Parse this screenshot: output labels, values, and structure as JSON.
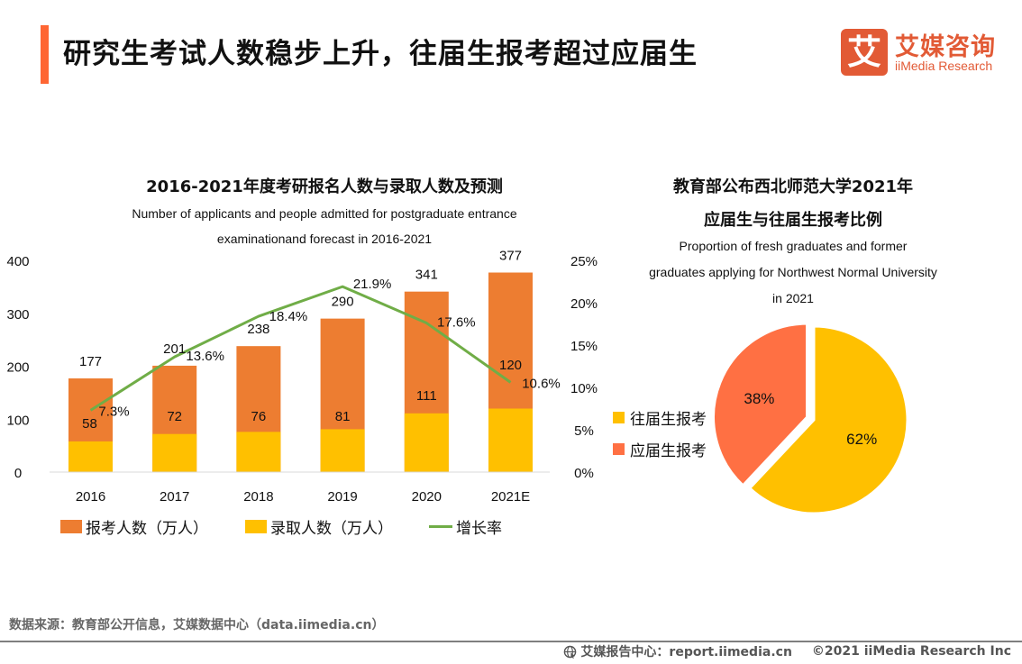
{
  "header": {
    "title": "研究生考试人数稳步上升，往届生报考超过应届生",
    "logo_cn": "艾媒咨询",
    "logo_en": "iiMedia Research",
    "logo_glyph": "艾",
    "accent_color": "#ff6633",
    "logo_color": "#e25a35"
  },
  "chart_data": [
    {
      "type": "bar",
      "title": "2016-2021年度考研报名人数与录取人数及预测",
      "subtitle_lines": [
        "Number of applicants and people admitted for postgraduate entrance",
        "examinationand forecast in 2016-2021"
      ],
      "categories": [
        "2016",
        "2017",
        "2018",
        "2019",
        "2020",
        "2021E"
      ],
      "series": [
        {
          "name": "报考人数（万人）",
          "kind": "bar",
          "axis": "left",
          "color": "#ed7d31",
          "values": [
            177,
            201,
            238,
            290,
            341,
            377
          ]
        },
        {
          "name": "录取人数（万人）",
          "kind": "bar",
          "axis": "left",
          "color": "#ffc000",
          "values": [
            58,
            72,
            76,
            81,
            111,
            120
          ]
        },
        {
          "name": "增长率",
          "kind": "line",
          "axis": "right",
          "color": "#70ad47",
          "values": [
            7.3,
            13.6,
            18.4,
            21.9,
            17.6,
            10.6
          ],
          "labels": [
            "7.3%",
            "13.6%",
            "18.4%",
            "21.9%",
            "17.6%",
            "10.6%"
          ]
        }
      ],
      "y_left": {
        "min": 0,
        "max": 400,
        "ticks": [
          "0",
          "100",
          "200",
          "300",
          "400"
        ]
      },
      "y_right": {
        "min": 0,
        "max": 25,
        "ticks": [
          "0%",
          "5%",
          "10%",
          "15%",
          "20%",
          "25%"
        ]
      },
      "grid": false,
      "legend_position": "bottom"
    },
    {
      "type": "pie",
      "title_lines": [
        "教育部公布西北师范大学2021年",
        "应届生与往届生报考比例"
      ],
      "subtitle_lines": [
        "Proportion of fresh graduates and former",
        "graduates applying for Northwest Normal University",
        "in 2021"
      ],
      "slices": [
        {
          "name": "往届生报考",
          "value": 62,
          "label": "62%",
          "color": "#ffc000"
        },
        {
          "name": "应届生报考",
          "value": 38,
          "label": "38%",
          "color": "#ff7043"
        }
      ],
      "legend_position": "left"
    }
  ],
  "footer": {
    "source": "数据来源：教育部公开信息，艾媒数据中心（data.iimedia.cn）",
    "report_center": "艾媒报告中心：report.iimedia.cn",
    "copyright": "©2021  iiMedia Research  Inc",
    "icon": "globe-icon"
  }
}
